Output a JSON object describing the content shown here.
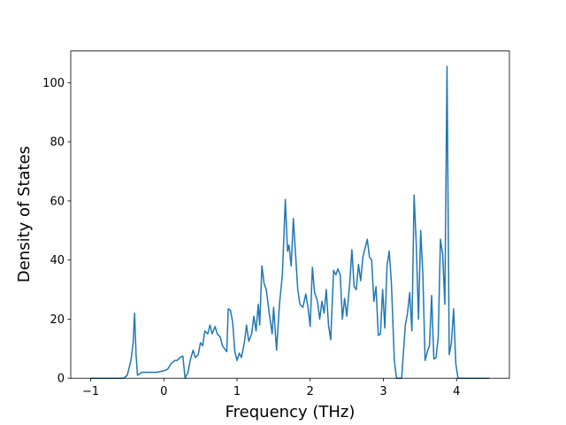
{
  "chart_data": {
    "type": "line",
    "xlabel": "Frequency (THz)",
    "ylabel": "Density of States",
    "color": "#1f77b4",
    "x": [
      -1.0,
      -0.9,
      -0.8,
      -0.7,
      -0.6,
      -0.55,
      -0.5,
      -0.45,
      -0.42,
      -0.4,
      -0.38,
      -0.36,
      -0.3,
      -0.2,
      -0.1,
      0.0,
      0.05,
      0.1,
      0.15,
      0.18,
      0.22,
      0.26,
      0.29,
      0.33,
      0.36,
      0.4,
      0.43,
      0.47,
      0.5,
      0.53,
      0.56,
      0.6,
      0.63,
      0.66,
      0.7,
      0.73,
      0.77,
      0.8,
      0.83,
      0.86,
      0.88,
      0.91,
      0.94,
      0.97,
      1.0,
      1.03,
      1.06,
      1.1,
      1.13,
      1.16,
      1.2,
      1.23,
      1.26,
      1.29,
      1.31,
      1.34,
      1.37,
      1.4,
      1.44,
      1.48,
      1.5,
      1.54,
      1.58,
      1.62,
      1.66,
      1.69,
      1.71,
      1.74,
      1.77,
      1.8,
      1.83,
      1.86,
      1.9,
      1.94,
      1.97,
      2.0,
      2.03,
      2.06,
      2.1,
      2.13,
      2.16,
      2.19,
      2.22,
      2.25,
      2.28,
      2.32,
      2.35,
      2.38,
      2.41,
      2.44,
      2.47,
      2.5,
      2.54,
      2.57,
      2.6,
      2.63,
      2.66,
      2.69,
      2.72,
      2.75,
      2.78,
      2.81,
      2.84,
      2.87,
      2.9,
      2.93,
      2.96,
      2.99,
      3.02,
      3.05,
      3.08,
      3.11,
      3.15,
      3.18,
      3.25,
      3.3,
      3.33,
      3.36,
      3.39,
      3.42,
      3.45,
      3.48,
      3.51,
      3.54,
      3.57,
      3.6,
      3.63,
      3.66,
      3.69,
      3.72,
      3.75,
      3.78,
      3.81,
      3.84,
      3.87,
      3.9,
      3.93,
      3.96,
      3.99,
      4.02,
      4.1,
      4.2,
      4.3,
      4.45
    ],
    "values": [
      0,
      0,
      0,
      0,
      0,
      0,
      1,
      6,
      12,
      22,
      8,
      1,
      2,
      2,
      2,
      2.5,
      3,
      5,
      6,
      6,
      7,
      7.5,
      0,
      2,
      6,
      9.5,
      7,
      8,
      12,
      11,
      16,
      15,
      18,
      15,
      17.5,
      15,
      14,
      11,
      10,
      9,
      23.5,
      23,
      19,
      9,
      6,
      8.5,
      7,
      12,
      18,
      12.5,
      15,
      21,
      16,
      25,
      18,
      38,
      32,
      30,
      22,
      15,
      24,
      9.5,
      25,
      35,
      60.5,
      43,
      45,
      38,
      54,
      42,
      30,
      25,
      24,
      28.5,
      24,
      17.5,
      37.5,
      29,
      26,
      20,
      26,
      22,
      30,
      18,
      13,
      36.5,
      35,
      37,
      35,
      20,
      27,
      21,
      32,
      43.5,
      31,
      30,
      38.5,
      33,
      41,
      44,
      47,
      41,
      40,
      26,
      31,
      14.5,
      15,
      30,
      17,
      38,
      43,
      32,
      6,
      0,
      0,
      18,
      22,
      29,
      16,
      62,
      45,
      20,
      50,
      35,
      6,
      9,
      11,
      28,
      6.5,
      7,
      14,
      47,
      42,
      25,
      105.5,
      8,
      12,
      23.5,
      5,
      0,
      0,
      0,
      0,
      0
    ],
    "xlim": [
      -1.2725,
      4.7225
    ],
    "ylim": [
      0,
      110.7
    ],
    "xticks": [
      {
        "value": -1,
        "label": "−1"
      },
      0,
      1,
      2,
      3,
      4
    ],
    "yticks": [
      0,
      20,
      40,
      60,
      80,
      100
    ]
  }
}
